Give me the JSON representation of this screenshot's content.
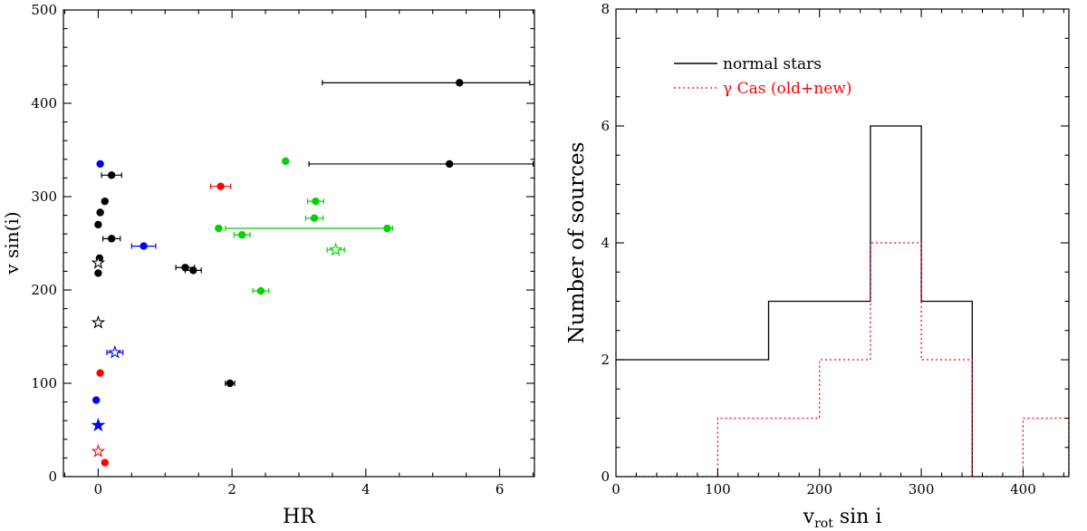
{
  "figure": {
    "background": "#ffffff",
    "text_color": "#000000"
  },
  "chart_data": [
    {
      "type": "scatter",
      "panel": "left",
      "title": "",
      "xlabel": "HR",
      "ylabel": "v sin(i)",
      "xlim": [
        -0.52,
        6.52
      ],
      "ylim": [
        0,
        500
      ],
      "xticks": [
        0,
        2,
        4,
        6
      ],
      "yticks": [
        0,
        100,
        200,
        300,
        400,
        500
      ],
      "xminor_step": 0.5,
      "yminor_step": 20,
      "marker_colors": {
        "black": "#000000",
        "blue": "#0000ff",
        "red": "#ff0000",
        "green": "#00d300"
      },
      "points": [
        {
          "x": 5.4,
          "y": 422,
          "color": "#000000",
          "marker": "circle",
          "xerr": [
            3.35,
            6.45
          ]
        },
        {
          "x": 5.25,
          "y": 335,
          "color": "#000000",
          "marker": "circle",
          "xerr": [
            3.15,
            6.5
          ]
        },
        {
          "x": 0.2,
          "y": 323,
          "color": "#000000",
          "marker": "circle",
          "xerr": [
            0.05,
            0.35
          ]
        },
        {
          "x": 0.1,
          "y": 295,
          "color": "#000000",
          "marker": "circle"
        },
        {
          "x": 0.03,
          "y": 283,
          "color": "#000000",
          "marker": "circle"
        },
        {
          "x": 0.0,
          "y": 270,
          "color": "#000000",
          "marker": "circle"
        },
        {
          "x": 0.2,
          "y": 255,
          "color": "#000000",
          "marker": "circle",
          "xerr": [
            0.07,
            0.33
          ]
        },
        {
          "x": 0.02,
          "y": 234,
          "color": "#000000",
          "marker": "circle"
        },
        {
          "x": 0.0,
          "y": 229,
          "color": "#000000",
          "marker": "star-open"
        },
        {
          "x": 0.0,
          "y": 218,
          "color": "#000000",
          "marker": "circle"
        },
        {
          "x": 1.3,
          "y": 224,
          "color": "#000000",
          "marker": "circle",
          "xerr": [
            1.16,
            1.44
          ]
        },
        {
          "x": 1.42,
          "y": 221,
          "color": "#000000",
          "marker": "circle",
          "xerr": [
            1.3,
            1.54
          ]
        },
        {
          "x": 1.97,
          "y": 100,
          "color": "#000000",
          "marker": "circle",
          "xerr": [
            1.9,
            2.04
          ]
        },
        {
          "x": 0.0,
          "y": 165,
          "color": "#000000",
          "marker": "star-open"
        },
        {
          "x": 0.03,
          "y": 335,
          "color": "#0000ff",
          "marker": "circle"
        },
        {
          "x": 0.68,
          "y": 247,
          "color": "#0000ff",
          "marker": "circle",
          "xerr": [
            0.5,
            0.86
          ]
        },
        {
          "x": 0.25,
          "y": 133,
          "color": "#0000ff",
          "marker": "star-open",
          "xerr": [
            0.13,
            0.37
          ]
        },
        {
          "x": -0.03,
          "y": 82,
          "color": "#0000ff",
          "marker": "circle"
        },
        {
          "x": 0.0,
          "y": 55,
          "color": "#0000ff",
          "marker": "star-filled"
        },
        {
          "x": 1.83,
          "y": 311,
          "color": "#ff0000",
          "marker": "circle",
          "xerr": [
            1.68,
            1.98
          ]
        },
        {
          "x": 0.03,
          "y": 111,
          "color": "#ff0000",
          "marker": "circle"
        },
        {
          "x": 0.0,
          "y": 27,
          "color": "#ff0000",
          "marker": "star-open"
        },
        {
          "x": 0.1,
          "y": 15,
          "color": "#ff0000",
          "marker": "circle"
        },
        {
          "x": 2.8,
          "y": 338,
          "color": "#00d300",
          "marker": "circle"
        },
        {
          "x": 3.25,
          "y": 295,
          "color": "#00d300",
          "marker": "circle",
          "xerr": [
            3.13,
            3.37
          ]
        },
        {
          "x": 3.23,
          "y": 277,
          "color": "#00d300",
          "marker": "circle",
          "xerr": [
            3.1,
            3.36
          ]
        },
        {
          "x": 1.8,
          "y": 266,
          "color": "#00d300",
          "marker": "circle"
        },
        {
          "x": 2.15,
          "y": 259,
          "color": "#00d300",
          "marker": "circle",
          "xerr": [
            2.03,
            2.27
          ]
        },
        {
          "x": 4.32,
          "y": 266,
          "color": "#00d300",
          "marker": "circle",
          "xerr": [
            1.9,
            4.4
          ]
        },
        {
          "x": 3.55,
          "y": 243,
          "color": "#00d300",
          "marker": "star-open",
          "xerr": [
            3.42,
            3.68
          ]
        },
        {
          "x": 2.43,
          "y": 199,
          "color": "#00d300",
          "marker": "circle",
          "xerr": [
            2.31,
            2.55
          ]
        }
      ]
    },
    {
      "type": "step-histogram",
      "panel": "right",
      "title": "",
      "xlabel_parts": [
        "v",
        "rot",
        "sin i"
      ],
      "ylabel": "Number of sources",
      "xlim": [
        0,
        445
      ],
      "ylim": [
        0,
        8
      ],
      "xticks": [
        0,
        100,
        200,
        300,
        400
      ],
      "yticks": [
        0,
        2,
        4,
        6,
        8
      ],
      "xminor_step": 20,
      "yminor_step": 0.5,
      "legend_position": "top-left",
      "series": [
        {
          "name": "normal stars",
          "color": "#000000",
          "line_style": "solid",
          "bin_edges": [
            0,
            150,
            250,
            300,
            350
          ],
          "counts": [
            2,
            3,
            6,
            3
          ]
        },
        {
          "name": "γ Cas (old+new)",
          "color": "#ff0000",
          "line_style": "dotted",
          "bin_edges": [
            0,
            100,
            200,
            250,
            300,
            350,
            400,
            445
          ],
          "counts": [
            0,
            1,
            2,
            4,
            2,
            0,
            1
          ]
        }
      ]
    }
  ]
}
